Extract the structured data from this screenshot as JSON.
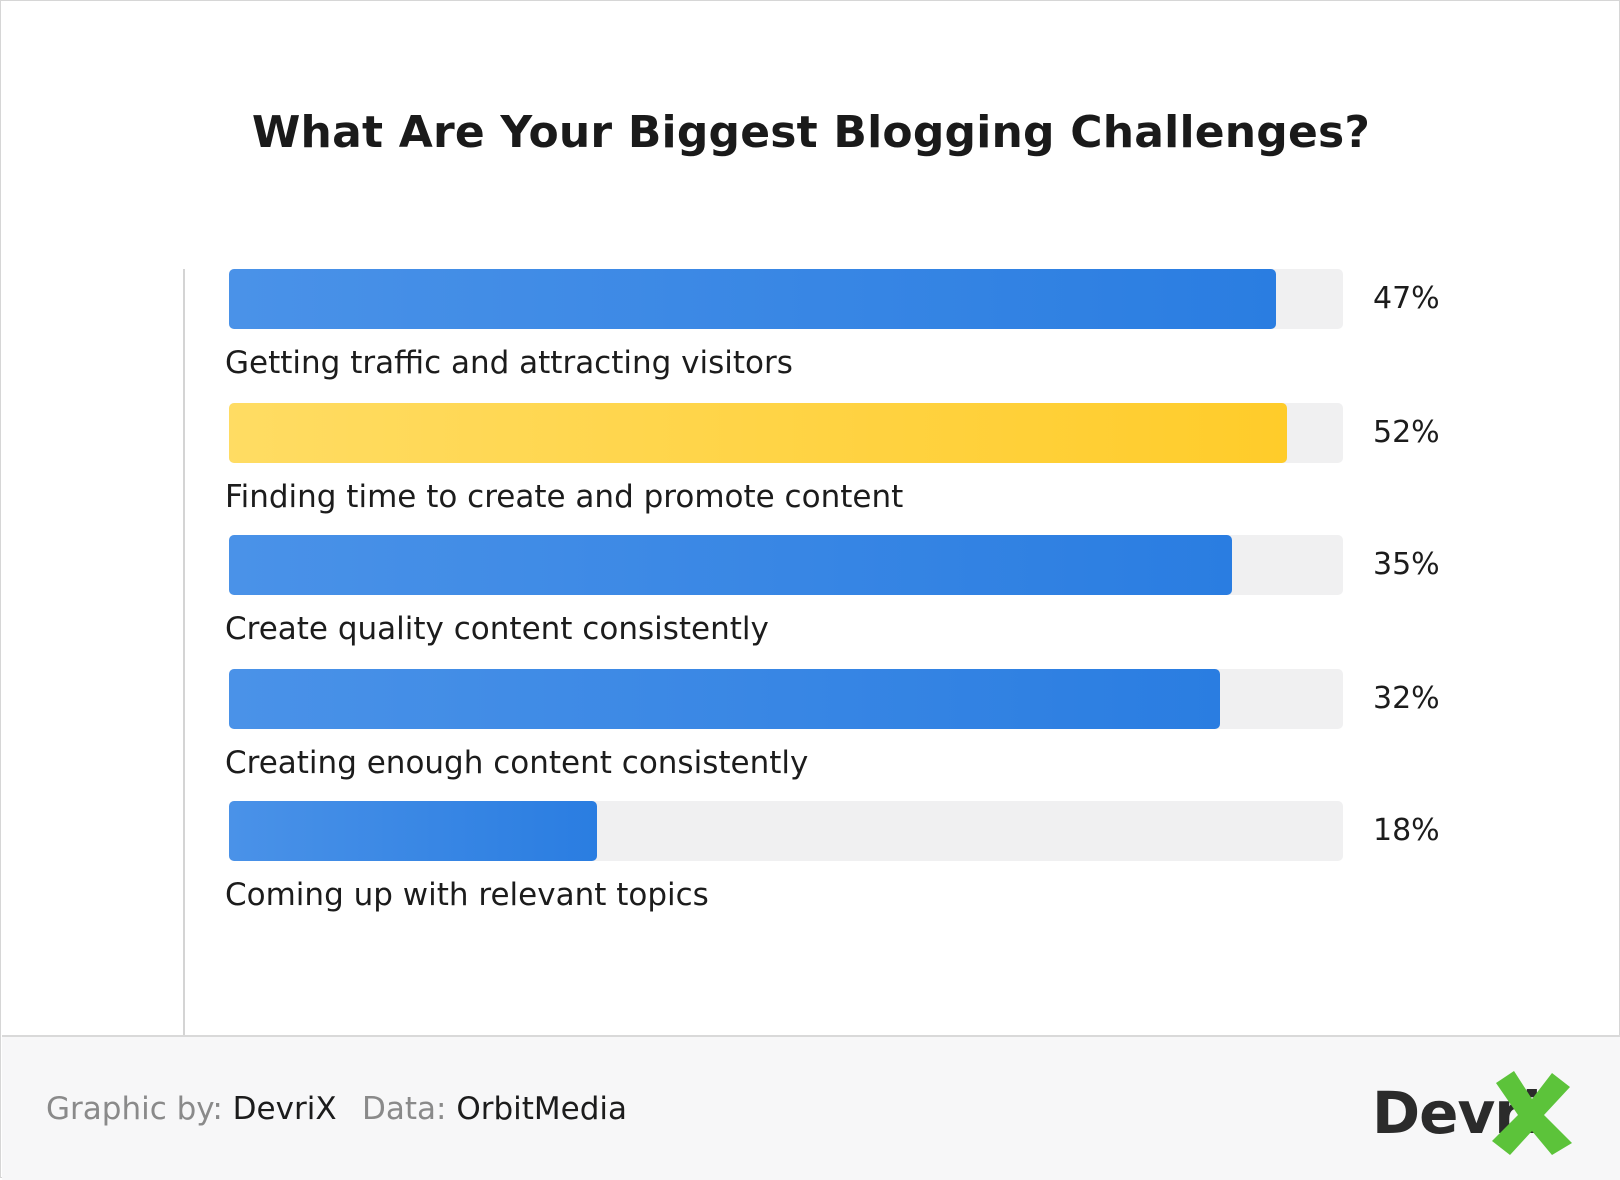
{
  "chart_data": {
    "type": "bar",
    "orientation": "horizontal",
    "title": "What Are Your Biggest Blogging Challenges?",
    "categories": [
      "Getting traffic and attracting visitors",
      "Finding time to create and promote content",
      "Create quality content consistently",
      "Creating enough content consistently",
      "Coming up with relevant topics"
    ],
    "value_labels": [
      "47%",
      "52%",
      "35%",
      "32%",
      "18%"
    ],
    "values": [
      47,
      52,
      35,
      32,
      18
    ],
    "bar_fill_fraction": [
      0.94,
      0.95,
      0.9,
      0.89,
      0.33
    ],
    "highlight_index": 1,
    "grid": false,
    "legend": "none"
  },
  "colors": {
    "bar": "#2a7de1",
    "highlight": "#ffcc2a",
    "track": "#f0f0f1",
    "logo_x": "#5cc33a"
  },
  "footer": {
    "graphic_by_label": "Graphic by:",
    "graphic_by_value": "DevriX",
    "data_label": "Data:",
    "data_value": "OrbitMedia"
  },
  "logo": {
    "text": "Devri",
    "icon": "x-mark-icon"
  }
}
